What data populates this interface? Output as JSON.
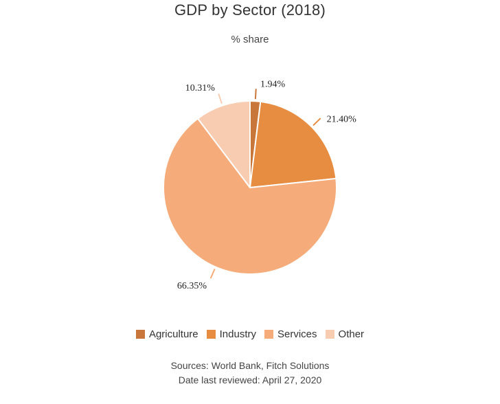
{
  "chart_data": {
    "type": "pie",
    "title": "GDP by Sector (2018)",
    "subtitle": "% share",
    "slices": [
      {
        "name": "Agriculture",
        "value": 1.94,
        "label": "1.94%",
        "color": "#C8763A"
      },
      {
        "name": "Industry",
        "value": 21.4,
        "label": "21.40%",
        "color": "#E68D42"
      },
      {
        "name": "Services",
        "value": 66.35,
        "label": "66.35%",
        "color": "#F6AC7A"
      },
      {
        "name": "Other",
        "value": 10.31,
        "label": "10.31%",
        "color": "#F8CCB0"
      }
    ],
    "legend_position": "bottom"
  },
  "footer": {
    "sources": "Sources: World Bank, Fitch Solutions",
    "reviewed": "Date last reviewed: April 27, 2020"
  }
}
